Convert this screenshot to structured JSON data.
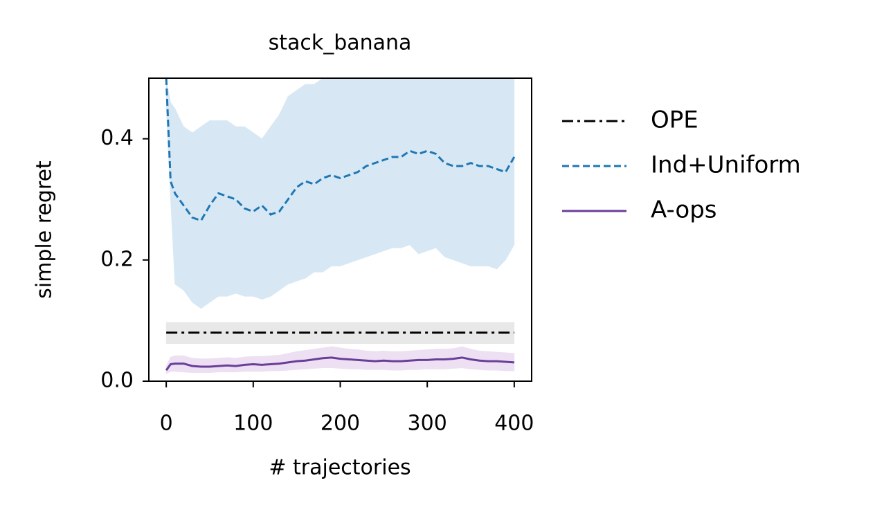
{
  "chart_data": {
    "type": "line",
    "title": "stack_banana",
    "xlabel": "# trajectories",
    "ylabel": "simple regret",
    "xlim": [
      -20,
      420
    ],
    "xticks": [
      0,
      100,
      200,
      300,
      400
    ],
    "ylim": [
      0,
      0.5
    ],
    "yticks": [
      {
        "value": 0,
        "label": "0.0"
      },
      0.2,
      0.4
    ],
    "grid": false,
    "legend": "outside right",
    "series": [
      {
        "name": "OPE",
        "color": "#000000",
        "band_color": "#e8e8e8",
        "linestyle": "dashdot",
        "x": [
          0,
          400
        ],
        "values": [
          0.08,
          0.08
        ],
        "lower": [
          0.062,
          0.062
        ],
        "upper": [
          0.097,
          0.097
        ]
      },
      {
        "name": "Ind+Uniform",
        "color": "#1f77b4",
        "band_color": "#d7e8f4",
        "linestyle": "dashed",
        "x": [
          0,
          5,
          10,
          20,
          30,
          40,
          50,
          60,
          70,
          80,
          90,
          100,
          110,
          120,
          130,
          140,
          150,
          160,
          170,
          180,
          190,
          200,
          210,
          220,
          230,
          240,
          250,
          260,
          270,
          280,
          290,
          300,
          310,
          320,
          330,
          340,
          350,
          360,
          370,
          380,
          390,
          400
        ],
        "values": [
          0.5,
          0.33,
          0.31,
          0.29,
          0.27,
          0.265,
          0.29,
          0.31,
          0.305,
          0.3,
          0.285,
          0.28,
          0.29,
          0.275,
          0.28,
          0.3,
          0.32,
          0.33,
          0.325,
          0.335,
          0.34,
          0.335,
          0.34,
          0.345,
          0.355,
          0.36,
          0.365,
          0.37,
          0.37,
          0.38,
          0.375,
          0.38,
          0.375,
          0.36,
          0.355,
          0.355,
          0.36,
          0.355,
          0.355,
          0.35,
          0.345,
          0.37
        ],
        "lower": [
          0.45,
          0.3,
          0.16,
          0.15,
          0.13,
          0.12,
          0.13,
          0.14,
          0.14,
          0.145,
          0.14,
          0.14,
          0.135,
          0.14,
          0.15,
          0.16,
          0.165,
          0.17,
          0.18,
          0.18,
          0.19,
          0.19,
          0.195,
          0.2,
          0.205,
          0.21,
          0.215,
          0.22,
          0.22,
          0.225,
          0.21,
          0.215,
          0.22,
          0.205,
          0.2,
          0.195,
          0.19,
          0.19,
          0.19,
          0.185,
          0.2,
          0.225
        ],
        "upper": [
          0.5,
          0.46,
          0.45,
          0.42,
          0.41,
          0.42,
          0.43,
          0.43,
          0.43,
          0.42,
          0.42,
          0.41,
          0.4,
          0.42,
          0.44,
          0.47,
          0.48,
          0.49,
          0.49,
          0.5,
          0.5,
          0.5,
          0.5,
          0.5,
          0.5,
          0.5,
          0.5,
          0.5,
          0.5,
          0.5,
          0.5,
          0.5,
          0.5,
          0.5,
          0.5,
          0.5,
          0.5,
          0.5,
          0.5,
          0.5,
          0.5,
          0.5
        ]
      },
      {
        "name": "A-ops",
        "color": "#6a3d9a",
        "band_color": "#ece0f2",
        "linestyle": "solid",
        "x": [
          0,
          5,
          10,
          20,
          30,
          40,
          50,
          60,
          70,
          80,
          90,
          100,
          110,
          120,
          130,
          140,
          150,
          160,
          170,
          180,
          190,
          200,
          210,
          220,
          230,
          240,
          250,
          260,
          270,
          280,
          290,
          300,
          310,
          320,
          330,
          340,
          350,
          360,
          370,
          380,
          390,
          400
        ],
        "values": [
          0.018,
          0.028,
          0.029,
          0.029,
          0.025,
          0.024,
          0.024,
          0.025,
          0.026,
          0.025,
          0.027,
          0.028,
          0.027,
          0.028,
          0.029,
          0.031,
          0.033,
          0.034,
          0.036,
          0.038,
          0.039,
          0.037,
          0.036,
          0.035,
          0.034,
          0.033,
          0.034,
          0.033,
          0.033,
          0.034,
          0.035,
          0.035,
          0.036,
          0.036,
          0.037,
          0.039,
          0.036,
          0.034,
          0.033,
          0.033,
          0.032,
          0.031
        ],
        "lower": [
          0.012,
          0.016,
          0.016,
          0.015,
          0.014,
          0.014,
          0.014,
          0.015,
          0.015,
          0.015,
          0.016,
          0.016,
          0.016,
          0.017,
          0.017,
          0.018,
          0.019,
          0.02,
          0.021,
          0.022,
          0.022,
          0.021,
          0.02,
          0.02,
          0.019,
          0.019,
          0.019,
          0.018,
          0.018,
          0.019,
          0.019,
          0.02,
          0.02,
          0.02,
          0.021,
          0.022,
          0.02,
          0.019,
          0.018,
          0.018,
          0.017,
          0.017
        ],
        "upper": [
          0.025,
          0.04,
          0.042,
          0.042,
          0.038,
          0.037,
          0.037,
          0.038,
          0.039,
          0.038,
          0.04,
          0.041,
          0.041,
          0.042,
          0.043,
          0.046,
          0.049,
          0.051,
          0.053,
          0.055,
          0.057,
          0.055,
          0.053,
          0.052,
          0.05,
          0.049,
          0.05,
          0.049,
          0.049,
          0.05,
          0.051,
          0.052,
          0.053,
          0.053,
          0.054,
          0.057,
          0.053,
          0.05,
          0.049,
          0.048,
          0.047,
          0.046
        ]
      }
    ]
  }
}
